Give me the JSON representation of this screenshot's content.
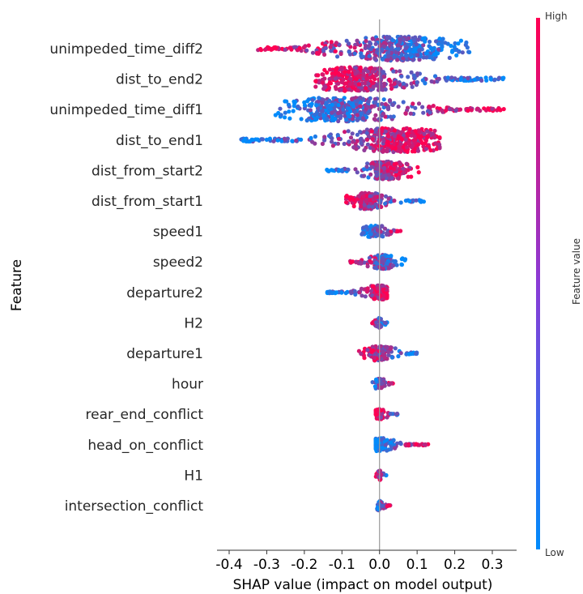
{
  "chart_data": {
    "type": "scatter",
    "subtype": "shap-beeswarm",
    "xlabel": "SHAP value (impact on model output)",
    "ylabel": "Feature",
    "xlim": [
      -0.4,
      0.37
    ],
    "xticks": [
      -0.4,
      -0.3,
      -0.2,
      -0.1,
      0.0,
      0.1,
      0.2,
      0.3
    ],
    "xtick_labels": [
      "-0.4",
      "-0.3",
      "-0.2",
      "-0.1",
      "0.0",
      "0.1",
      "0.2",
      "0.3"
    ],
    "grid": false,
    "colorbar": {
      "label": "Feature value",
      "high_label": "High",
      "low_label": "Low",
      "high_color": "#ff0052",
      "low_color": "#008bfb"
    },
    "features": [
      {
        "name": "unimpeded_time_diff2",
        "min": -0.33,
        "max": 0.24,
        "center": 0.05,
        "lowColorSide": "right"
      },
      {
        "name": "dist_to_end2",
        "min": -0.17,
        "max": 0.33,
        "center": -0.06,
        "lowColorSide": "right"
      },
      {
        "name": "unimpeded_time_diff1",
        "min": -0.28,
        "max": 0.34,
        "center": -0.1,
        "lowColorSide": "left"
      },
      {
        "name": "dist_to_end1",
        "min": -0.37,
        "max": 0.16,
        "center": 0.05,
        "lowColorSide": "left"
      },
      {
        "name": "dist_from_start2",
        "min": -0.14,
        "max": 0.11,
        "center": 0.02,
        "lowColorSide": "left"
      },
      {
        "name": "dist_from_start1",
        "min": -0.09,
        "max": 0.12,
        "center": -0.03,
        "lowColorSide": "right"
      },
      {
        "name": "speed1",
        "min": -0.05,
        "max": 0.06,
        "center": -0.01,
        "lowColorSide": "left"
      },
      {
        "name": "speed2",
        "min": -0.08,
        "max": 0.07,
        "center": 0.01,
        "lowColorSide": "right"
      },
      {
        "name": "departure2",
        "min": -0.14,
        "max": 0.02,
        "center": 0.0,
        "lowColorSide": "left"
      },
      {
        "name": "H2",
        "min": -0.02,
        "max": 0.02,
        "center": 0.0,
        "lowColorSide": "right"
      },
      {
        "name": "departure1",
        "min": -0.06,
        "max": 0.1,
        "center": 0.0,
        "lowColorSide": "right"
      },
      {
        "name": "hour",
        "min": -0.02,
        "max": 0.04,
        "center": 0.0,
        "lowColorSide": "left"
      },
      {
        "name": "rear_end_conflict",
        "min": -0.01,
        "max": 0.06,
        "center": 0.0,
        "lowColorSide": "right"
      },
      {
        "name": "head_on_conflict",
        "min": -0.01,
        "max": 0.13,
        "center": 0.0,
        "lowColorSide": "left"
      },
      {
        "name": "H1",
        "min": -0.01,
        "max": 0.02,
        "center": 0.0,
        "lowColorSide": "right"
      },
      {
        "name": "intersection_conflict",
        "min": -0.01,
        "max": 0.03,
        "center": 0.0,
        "lowColorSide": "left"
      }
    ]
  }
}
